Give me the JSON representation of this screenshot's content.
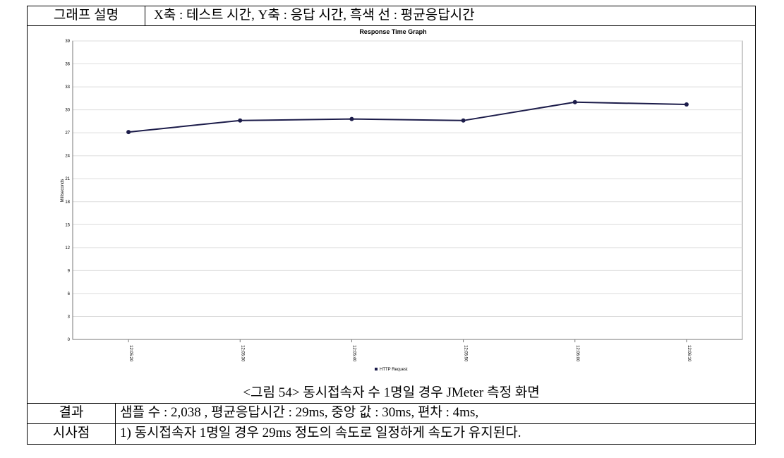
{
  "header": {
    "label": "그래프 설명",
    "text": "X축 : 테스트 시간, Y축 : 응답 시간, 흑색 선 : 평균응답시간"
  },
  "caption": "<그림 54> 동시접속자 수 1명일 경우 JMeter 측정 화면",
  "rows": [
    [
      "결과",
      "샘플 수 : 2,038 , 평균응답시간 : 29ms, 중앙 값 : 30ms, 편차 : 4ms,"
    ],
    [
      "시사점",
      "1) 동시접속자 1명일 경우 29ms 정도의 속도로 일정하게 속도가 유지된다."
    ]
  ],
  "chart_data": {
    "type": "line",
    "title": "Response Time Graph",
    "y_label": "Milliseconds",
    "categories": [
      "12:05:20",
      "12:05:30",
      "12:05:40",
      "12:05:50",
      "12:06:00",
      "12:06:10"
    ],
    "series": [
      {
        "name": "HTTP Request",
        "color": "#1c1c4a",
        "values": [
          27.1,
          28.6,
          28.8,
          28.6,
          31.0,
          30.7
        ]
      }
    ],
    "ylim": [
      0,
      39
    ],
    "yticks": [
      0,
      3,
      6,
      9,
      12,
      15,
      18,
      21,
      24,
      27,
      30,
      33,
      36,
      39
    ],
    "grid": true,
    "legend": "bottom"
  }
}
